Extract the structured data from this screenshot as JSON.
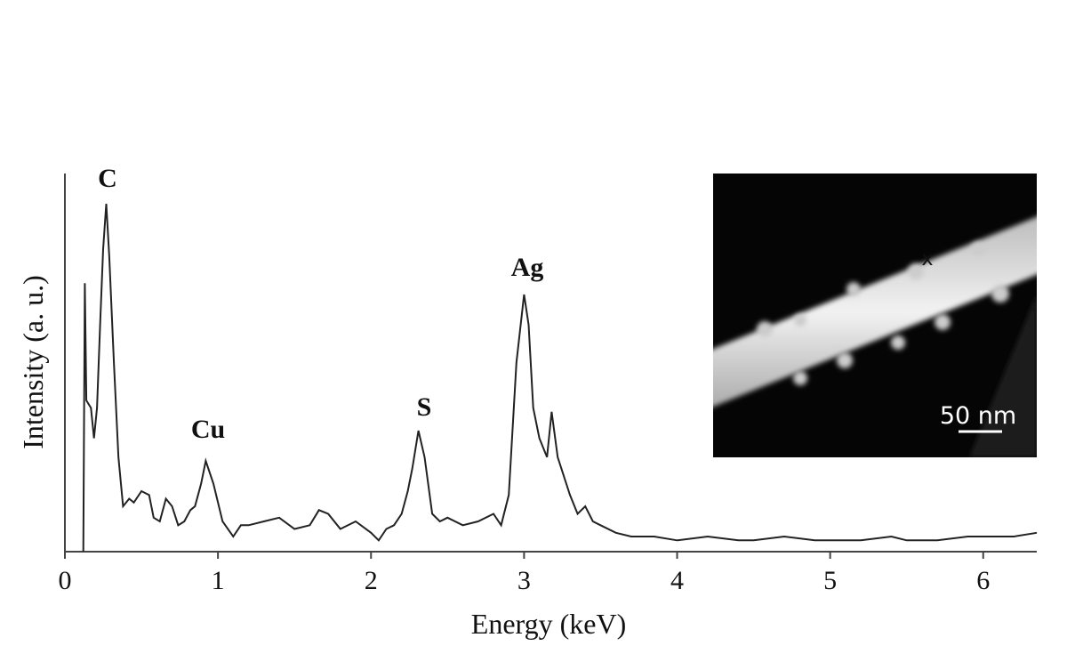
{
  "chart_data": {
    "type": "line",
    "xlabel": "Energy (keV)",
    "ylabel": "Intensity (a. u.)",
    "xlim": [
      0,
      6.35
    ],
    "xticks": [
      0,
      1,
      2,
      3,
      4,
      5,
      6
    ],
    "ylim": [
      0,
      100
    ],
    "series": [
      {
        "color": "#222222",
        "x": [
          0.12,
          0.13,
          0.14,
          0.17,
          0.19,
          0.21,
          0.23,
          0.25,
          0.27,
          0.29,
          0.32,
          0.35,
          0.38,
          0.42,
          0.45,
          0.5,
          0.55,
          0.58,
          0.62,
          0.66,
          0.7,
          0.74,
          0.78,
          0.82,
          0.85,
          0.89,
          0.92,
          0.97,
          1.03,
          1.1,
          1.15,
          1.2,
          1.3,
          1.4,
          1.5,
          1.6,
          1.66,
          1.72,
          1.8,
          1.9,
          2.0,
          2.05,
          2.1,
          2.15,
          2.2,
          2.24,
          2.27,
          2.31,
          2.35,
          2.4,
          2.45,
          2.5,
          2.6,
          2.7,
          2.8,
          2.85,
          2.9,
          2.95,
          3.0,
          3.03,
          3.06,
          3.1,
          3.15,
          3.18,
          3.22,
          3.3,
          3.35,
          3.4,
          3.45,
          3.5,
          3.6,
          3.7,
          3.85,
          4.0,
          4.2,
          4.4,
          4.5,
          4.7,
          4.9,
          5.0,
          5.2,
          5.4,
          5.5,
          5.7,
          5.9,
          6.0,
          6.2,
          6.35
        ],
        "values": [
          0,
          71,
          40,
          38,
          30,
          38,
          60,
          80,
          92,
          78,
          50,
          25,
          12,
          14,
          13,
          16,
          15,
          9,
          8,
          14,
          12,
          7,
          8,
          11,
          12,
          18,
          24,
          18,
          8,
          4,
          7,
          7,
          8,
          9,
          6,
          7,
          11,
          10,
          6,
          8,
          5,
          3,
          6,
          7,
          10,
          16,
          22,
          32,
          25,
          10,
          8,
          9,
          7,
          8,
          10,
          7,
          15,
          50,
          68,
          60,
          38,
          30,
          25,
          37,
          25,
          15,
          10,
          12,
          8,
          7,
          5,
          4,
          4,
          3,
          4,
          3,
          3,
          4,
          3,
          3,
          3,
          4,
          3,
          3,
          4,
          4,
          4,
          5
        ]
      }
    ],
    "annotations": [
      "C",
      "Cu",
      "S",
      "Ag"
    ],
    "inset": {
      "marker": "x",
      "scale_label": "50 nm"
    }
  }
}
